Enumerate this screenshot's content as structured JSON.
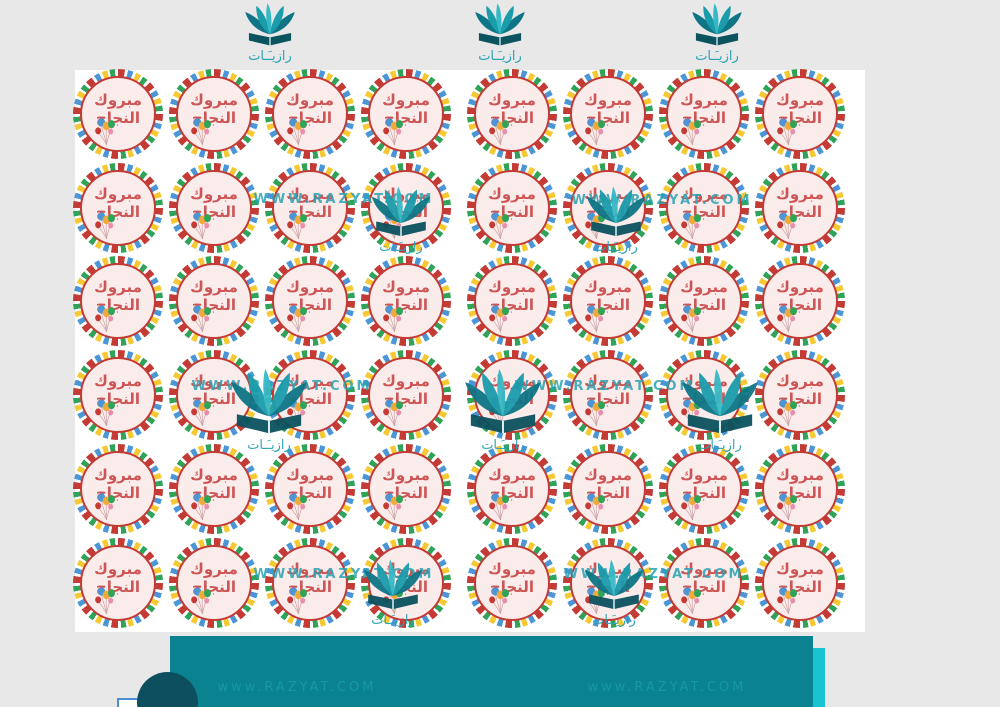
{
  "brand": {
    "logo_label": "رازيـَـات",
    "watermark_upper": "WWW.RAZYAT.COM",
    "watermark_lower": "www.RAZYAT.COM"
  },
  "sticker": {
    "line1": "مبروك",
    "line2": "النجاح",
    "rows": 6,
    "columns": 8,
    "count": 48
  },
  "colors": {
    "bg-gray": "#e8e8e8",
    "accent-teal": "#29a3b3",
    "logo-teal-dark": "#0e7586",
    "logo-teal-mid": "#1b9cab",
    "logo-teal-light": "#36b9c7",
    "logo-base": "#0b535f",
    "sticker-red": "#c43b35",
    "sticker-text-red": "#cd5555",
    "sticker-pink": "#fbecec",
    "flag-blue": "#4a96d6",
    "flag-yellow": "#f6c832",
    "flag-green": "#2fa357",
    "balloon-orange": "#f2a93b",
    "balloon-pink": "#e98fae",
    "panel-teal": "#0b8290",
    "panel-text": "#1598a6",
    "cyan-strip": "#19c3d1",
    "dark-circle": "#0d4f5f",
    "corner-box-blue": "#4a90d9"
  }
}
